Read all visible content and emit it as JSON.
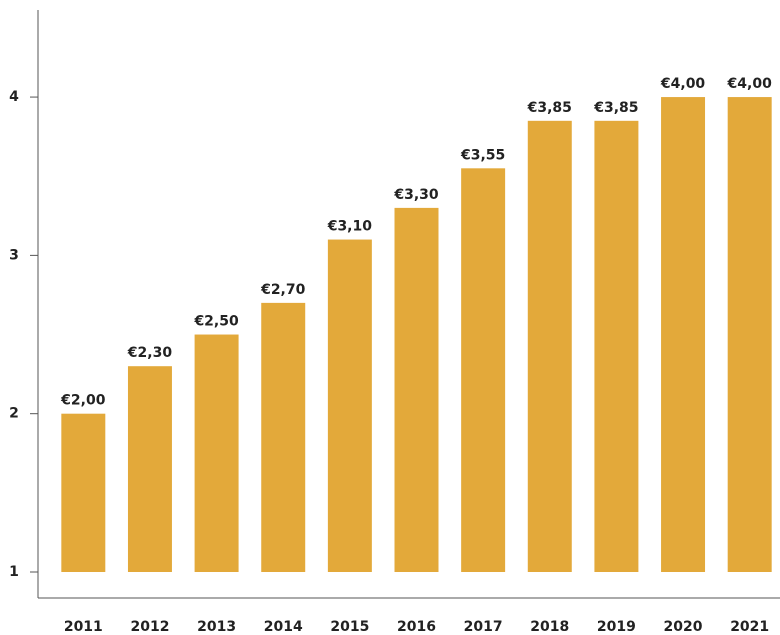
{
  "chart_data": {
    "type": "bar",
    "categories": [
      "2011",
      "2012",
      "2013",
      "2014",
      "2015",
      "2016",
      "2017",
      "2018",
      "2019",
      "2020",
      "2021"
    ],
    "values": [
      2.0,
      2.3,
      2.5,
      2.7,
      3.1,
      3.3,
      3.55,
      3.85,
      3.85,
      4.0,
      4.0
    ],
    "value_labels": [
      "€2,00",
      "€2,30",
      "€2,50",
      "€2,70",
      "€3,10",
      "€3,30",
      "€3,55",
      "€3,85",
      "€3,85",
      "€4,00",
      "€4,00"
    ],
    "color": "#e3a93a",
    "ylim": [
      1,
      4.55
    ],
    "yticks": [
      1,
      2,
      3,
      4
    ],
    "grid": false
  }
}
